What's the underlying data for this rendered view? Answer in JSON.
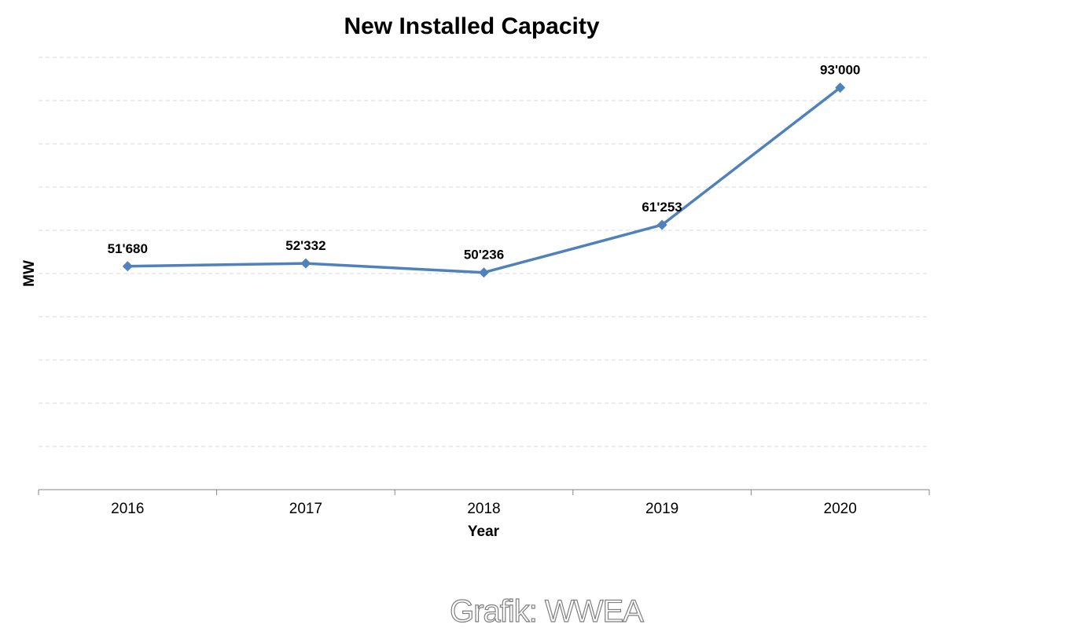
{
  "chart_data": {
    "type": "line",
    "title": "New Installed Capacity",
    "xlabel": "Year",
    "ylabel": "MW",
    "categories": [
      "2016",
      "2017",
      "2018",
      "2019",
      "2020"
    ],
    "series": [
      {
        "name": "",
        "values": [
          51680,
          52332,
          50236,
          61253,
          93000
        ],
        "labels": [
          "51'680",
          "52'332",
          "50'236",
          "61'253",
          "93'000"
        ],
        "color": "#4f81bd",
        "marker": "diamond"
      }
    ],
    "ylim": [
      0,
      100000
    ],
    "grid": true,
    "legend": "none"
  },
  "credit": "Grafik: WWEA"
}
